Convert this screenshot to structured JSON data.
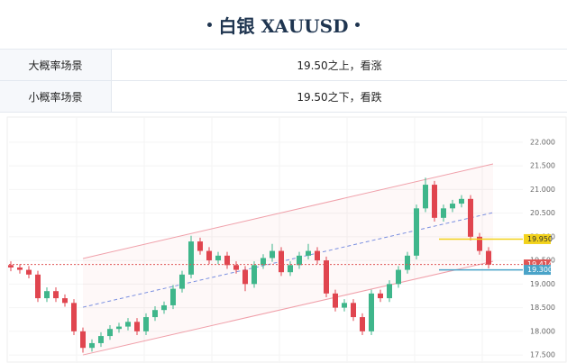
{
  "header": {
    "title": "白银  XAUUSD"
  },
  "table": {
    "rows": [
      [
        "大概率场景",
        "19.50之上，看涨"
      ],
      [
        "小概率场景",
        "19.50之下，看跌"
      ]
    ]
  },
  "chart_data": {
    "type": "candlestick",
    "ylim": [
      17.33,
      22.53
    ],
    "yticks": [
      {
        "value": 17.5,
        "label": "17.500"
      },
      {
        "value": 18,
        "label": "18.000"
      },
      {
        "value": 18.5,
        "label": "18.500"
      },
      {
        "value": 19,
        "label": "19.000"
      },
      {
        "value": 19.5,
        "label": "19.500"
      },
      {
        "value": 20,
        "label": "20.000"
      },
      {
        "value": 20.5,
        "label": "20.500"
      },
      {
        "value": 21,
        "label": "21.000"
      },
      {
        "value": 21.5,
        "label": "21.500"
      },
      {
        "value": 22,
        "label": "22.000"
      }
    ],
    "up_color": "#3fb68b",
    "down_color": "#e0454f",
    "open": [
      19.4,
      19.35,
      19.3,
      19.2,
      18.7,
      18.85,
      18.7,
      18.6,
      18.0,
      17.65,
      17.75,
      17.9,
      18.05,
      18.1,
      18.2,
      18.0,
      18.3,
      18.45,
      18.55,
      18.9,
      19.2,
      19.9,
      19.7,
      19.5,
      19.6,
      19.4,
      19.3,
      19.0,
      19.4,
      19.55,
      19.7,
      19.25,
      19.4,
      19.6,
      19.7,
      19.5,
      18.8,
      18.5,
      18.6,
      18.3,
      18.0,
      18.8,
      18.7,
      19.0,
      19.3,
      19.6,
      20.6,
      21.1,
      20.4,
      20.6,
      20.7,
      20.8,
      20.0,
      19.7
    ],
    "high": [
      19.48,
      19.42,
      19.38,
      19.28,
      18.93,
      18.93,
      18.78,
      18.68,
      18.08,
      17.83,
      17.98,
      18.13,
      18.18,
      18.28,
      18.28,
      18.38,
      18.53,
      18.63,
      18.98,
      19.28,
      20.02,
      19.98,
      19.78,
      19.68,
      19.68,
      19.48,
      19.38,
      19.48,
      19.63,
      19.85,
      19.78,
      19.48,
      19.68,
      19.85,
      19.78,
      19.58,
      18.88,
      18.68,
      18.68,
      18.38,
      18.88,
      18.88,
      19.08,
      19.38,
      19.68,
      20.68,
      21.25,
      21.18,
      20.68,
      20.78,
      20.88,
      20.88,
      20.08,
      19.78
    ],
    "low": [
      19.27,
      19.22,
      19.12,
      18.62,
      18.62,
      18.62,
      18.52,
      17.92,
      17.55,
      17.57,
      17.67,
      17.82,
      17.97,
      18.02,
      17.92,
      17.92,
      18.22,
      18.37,
      18.47,
      18.82,
      19.12,
      19.62,
      19.42,
      19.42,
      19.32,
      19.22,
      18.85,
      18.92,
      19.32,
      19.47,
      19.17,
      19.17,
      19.32,
      19.52,
      19.42,
      18.72,
      18.42,
      18.42,
      18.22,
      17.92,
      17.92,
      18.62,
      18.62,
      18.92,
      19.22,
      19.52,
      20.52,
      20.32,
      20.32,
      20.52,
      20.62,
      19.92,
      19.62,
      19.33
    ],
    "close": [
      19.35,
      19.3,
      19.2,
      18.7,
      18.85,
      18.7,
      18.6,
      18.0,
      17.65,
      17.75,
      17.9,
      18.05,
      18.1,
      18.2,
      18.0,
      18.3,
      18.45,
      18.55,
      18.9,
      19.2,
      19.9,
      19.7,
      19.5,
      19.6,
      19.4,
      19.3,
      19.0,
      19.4,
      19.55,
      19.7,
      19.25,
      19.4,
      19.6,
      19.7,
      19.5,
      18.8,
      18.5,
      18.6,
      18.3,
      18.0,
      18.8,
      18.7,
      19.0,
      19.3,
      19.6,
      20.6,
      21.1,
      20.4,
      20.6,
      20.7,
      20.8,
      20.0,
      19.7,
      19.41
    ],
    "channel": {
      "color": "#f0a0aa",
      "mid_color": "#7a8fe0",
      "upper": [
        19.54,
        21.54
      ],
      "middle": [
        18.51,
        20.51
      ],
      "lower": [
        17.5,
        19.48
      ]
    },
    "levels": [
      {
        "value": 19.95,
        "label": "19.950",
        "color": "#f2d21b"
      },
      {
        "value": 19.414,
        "label": "19.414",
        "color": "#e05555"
      },
      {
        "value": 19.3,
        "label": "19.300",
        "color": "#4aa3c8"
      }
    ]
  }
}
